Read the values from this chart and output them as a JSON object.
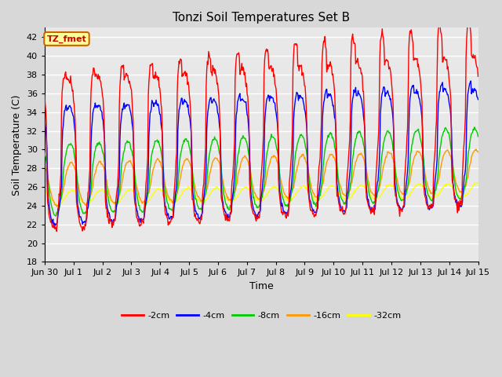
{
  "title": "Tonzi Soil Temperatures Set B",
  "xlabel": "Time",
  "ylabel": "Soil Temperature (C)",
  "ylim": [
    18,
    43
  ],
  "yticks": [
    18,
    20,
    22,
    24,
    26,
    28,
    30,
    32,
    34,
    36,
    38,
    40,
    42
  ],
  "annotation_text": "TZ_fmet",
  "annotation_color": "#cc0000",
  "annotation_bg": "#ffff99",
  "annotation_border": "#cc6600",
  "colors": {
    "-2cm": "#ff0000",
    "-4cm": "#0000ff",
    "-8cm": "#00cc00",
    "-16cm": "#ff9900",
    "-32cm": "#ffff00"
  },
  "legend_labels": [
    "-2cm",
    "-4cm",
    "-8cm",
    "-16cm",
    "-32cm"
  ],
  "x_tick_labels": [
    "Jun 30",
    "Jul 1",
    "Jul 2",
    "Jul 3",
    "Jul 4",
    "Jul 5",
    "Jul 6",
    "Jul 7",
    "Jul 8",
    "Jul 9",
    "Jul 10",
    "Jul 11",
    "Jul 12",
    "Jul 13",
    "Jul 14",
    "Jul 15"
  ],
  "background_color": "#d8d8d8",
  "plot_bg_color": "#e8e8e8",
  "grid_color": "#ffffff",
  "title_fontsize": 11,
  "axis_fontsize": 9,
  "tick_fontsize": 8,
  "n_days": 15,
  "pts_per_day": 48
}
